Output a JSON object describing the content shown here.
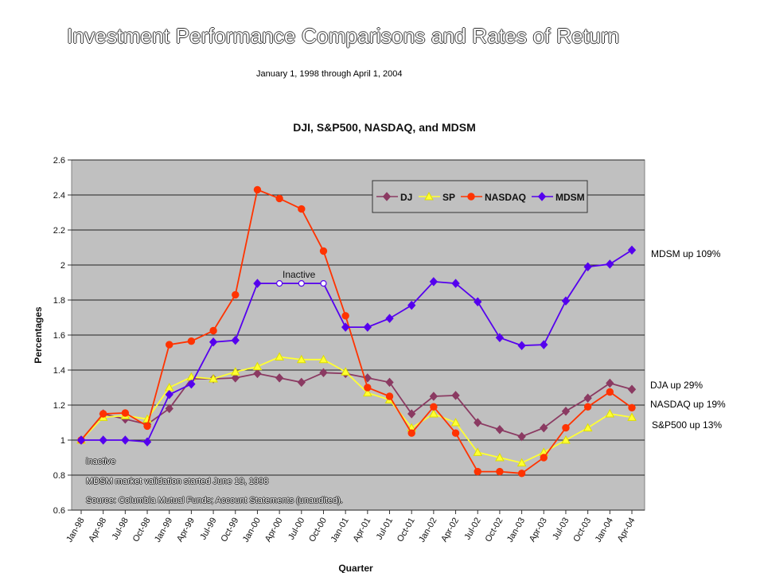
{
  "header": {
    "title": "Investment Performance Comparisons and Rates of Return",
    "subtitle": "January 1, 1998 through April 1, 2004"
  },
  "chart_data": {
    "type": "line",
    "title": "DJI, S&P500, NASDAQ, and MDSM",
    "xlabel": "Quarter",
    "ylabel": "Percentages",
    "ylim": [
      0.6,
      2.6
    ],
    "yticks": [
      "0.6",
      "0.8",
      "1",
      "1.2",
      "1.4",
      "1.6",
      "1.8",
      "2",
      "2.2",
      "2.4",
      "2.6"
    ],
    "grid": true,
    "legend_position": "top-center",
    "x": [
      "Jan-98",
      "Apr-98",
      "Jul-98",
      "Oct-98",
      "Jan-99",
      "Apr-99",
      "Jul-99",
      "Oct-99",
      "Jan-00",
      "Apr-00",
      "Jul-00",
      "Oct-00",
      "Jan-01",
      "Apr-01",
      "Jul-01",
      "Oct-01",
      "Jan-02",
      "Apr-02",
      "Jul-02",
      "Oct-02",
      "Jan-03",
      "Apr-03",
      "Jul-03",
      "Oct-03",
      "Jan-04",
      "Apr-04"
    ],
    "series": [
      {
        "name": "DJ",
        "color": "#8b3a62",
        "marker": "diamond",
        "values": [
          1.0,
          1.15,
          1.12,
          1.09,
          1.18,
          1.35,
          1.35,
          1.355,
          1.38,
          1.355,
          1.33,
          1.385,
          1.38,
          1.355,
          1.33,
          1.15,
          1.25,
          1.255,
          1.1,
          1.06,
          1.02,
          1.07,
          1.165,
          1.24,
          1.325,
          1.29
        ]
      },
      {
        "name": "SP",
        "color": "#ffff33",
        "marker": "triangle",
        "values": [
          1.0,
          1.13,
          1.14,
          1.12,
          1.3,
          1.36,
          1.35,
          1.39,
          1.42,
          1.475,
          1.46,
          1.46,
          1.39,
          1.27,
          1.23,
          1.07,
          1.15,
          1.1,
          0.93,
          0.9,
          0.87,
          0.93,
          1.0,
          1.07,
          1.15,
          1.13
        ]
      },
      {
        "name": "NASDAQ",
        "color": "#ff3300",
        "marker": "circle",
        "values": [
          1.0,
          1.15,
          1.155,
          1.08,
          1.545,
          1.565,
          1.625,
          1.83,
          2.43,
          2.38,
          2.32,
          2.08,
          1.71,
          1.3,
          1.25,
          1.04,
          1.19,
          1.04,
          0.82,
          0.82,
          0.81,
          0.9,
          1.07,
          1.19,
          1.275,
          1.185
        ]
      },
      {
        "name": "MDSM",
        "color": "#5500ee",
        "marker": "diamond",
        "inactive_points": [
          "Apr-00",
          "Jul-00",
          "Oct-00"
        ],
        "values": [
          1.0,
          1.0,
          1.0,
          0.99,
          1.26,
          1.32,
          1.56,
          1.57,
          1.895,
          1.895,
          1.895,
          1.895,
          1.645,
          1.645,
          1.695,
          1.77,
          1.905,
          1.895,
          1.79,
          1.585,
          1.54,
          1.545,
          1.795,
          1.99,
          2.005,
          2.085
        ]
      }
    ],
    "annotations": {
      "inactive_label": "Inactive",
      "footnote_inactive": "inactive",
      "footnote_validation": "MDSM market validation started June 19, 1998",
      "footnote_source": "Source: Columbia Mutual Funds; Account Statements (unaudited)."
    },
    "end_labels": {
      "mdsm": "MDSM up 109%",
      "dja": "DJA up 29%",
      "nasdaq": "NASDAQ up 19%",
      "sp": "S&P500 up 13%"
    }
  }
}
